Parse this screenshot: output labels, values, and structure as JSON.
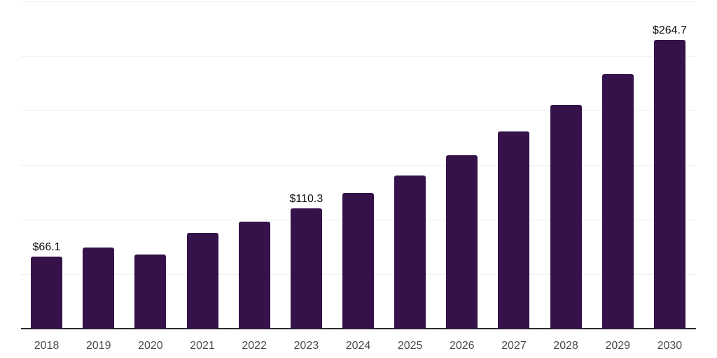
{
  "chart_data": {
    "type": "bar",
    "title": "",
    "xlabel": "",
    "ylabel": "",
    "categories": [
      "2018",
      "2019",
      "2020",
      "2021",
      "2022",
      "2023",
      "2024",
      "2025",
      "2026",
      "2027",
      "2028",
      "2029",
      "2030"
    ],
    "values": [
      66.1,
      74.2,
      68.0,
      87.7,
      98.1,
      110.3,
      124.4,
      140.4,
      158.8,
      180.7,
      205.0,
      233.2,
      264.7
    ],
    "data_labels": {
      "2018": "$66.1",
      "2023": "$110.3",
      "2030": "$264.7"
    },
    "ylim": [
      0,
      300
    ],
    "gridline_step": 50,
    "grid": "horizontal",
    "legend": "none",
    "y_axis_labels": "none"
  },
  "colors": {
    "bar_fill": "#35124a",
    "gridline": "#f0f0f0",
    "axis_line": "#2b2b2b",
    "value_label_text": "#0d0d0d",
    "x_label_text": "#4a4a4a",
    "background": "#ffffff"
  }
}
